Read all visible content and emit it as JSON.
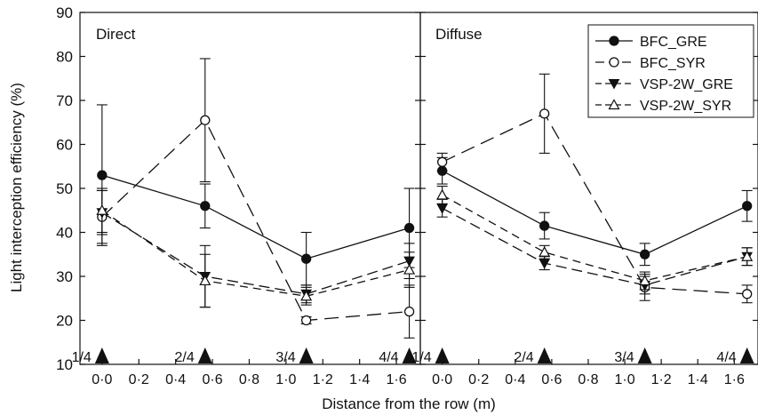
{
  "figure": {
    "ylabel": "Light interception efficiency (%)",
    "xlabel": "Distance from the row (m)"
  },
  "chart_data": [
    {
      "type": "line",
      "panel_label": "Direct",
      "x_ticks": [
        "0·0",
        "0·2",
        "0·4",
        "0·6",
        "0·8",
        "1·0",
        "1·2",
        "1·4",
        "1·6"
      ],
      "x_tick_values": [
        0,
        0.2,
        0.4,
        0.6,
        0.8,
        1.0,
        1.2,
        1.4,
        1.6
      ],
      "xlim": [
        -0.12,
        1.73
      ],
      "y_ticks": [
        10,
        20,
        30,
        40,
        50,
        60,
        70,
        80,
        90
      ],
      "ylim": [
        10,
        90
      ],
      "markers": [
        {
          "label": "1/4",
          "x": 0.0
        },
        {
          "label": "2/4",
          "x": 0.56
        },
        {
          "label": "3/4",
          "x": 1.11
        },
        {
          "label": "4/4",
          "x": 1.67
        }
      ],
      "series": [
        {
          "name": "BFC_GRE",
          "marker": "filled-circle",
          "dash": "solid",
          "x": [
            0.0,
            0.56,
            1.11,
            1.67
          ],
          "y": [
            53,
            46,
            34,
            41
          ],
          "err": [
            16,
            5,
            6,
            9
          ]
        },
        {
          "name": "BFC_SYR",
          "marker": "open-circle",
          "dash": "long",
          "x": [
            0.0,
            0.56,
            1.11,
            1.67
          ],
          "y": [
            43.5,
            65.5,
            20,
            22
          ],
          "err": [
            6,
            14,
            0.8,
            6
          ]
        },
        {
          "name": "VSP-2W_GRE",
          "marker": "filled-triangle-down",
          "dash": "medium",
          "x": [
            0.0,
            0.56,
            1.11,
            1.67
          ],
          "y": [
            44.5,
            30,
            26,
            33.5
          ],
          "err": [
            5,
            7,
            2,
            4
          ]
        },
        {
          "name": "VSP-2W_SYR",
          "marker": "open-triangle-up",
          "dash": "short",
          "x": [
            0.0,
            0.56,
            1.11,
            1.67
          ],
          "y": [
            45,
            29,
            25.5,
            31.5
          ],
          "err": [
            5,
            6,
            2,
            4
          ]
        }
      ]
    },
    {
      "type": "line",
      "panel_label": "Diffuse",
      "x_ticks": [
        "0·0",
        "0·2",
        "0·4",
        "0·6",
        "0·8",
        "1·0",
        "1·2",
        "1·4",
        "1·6"
      ],
      "x_tick_values": [
        0,
        0.2,
        0.4,
        0.6,
        0.8,
        1.0,
        1.2,
        1.4,
        1.6
      ],
      "xlim": [
        -0.12,
        1.73
      ],
      "y_ticks": [
        10,
        20,
        30,
        40,
        50,
        60,
        70,
        80,
        90
      ],
      "ylim": [
        10,
        90
      ],
      "markers": [
        {
          "label": "1/4",
          "x": 0.0
        },
        {
          "label": "2/4",
          "x": 0.56
        },
        {
          "label": "3/4",
          "x": 1.11
        },
        {
          "label": "4/4",
          "x": 1.67
        }
      ],
      "legend": {
        "placement": "top-right"
      },
      "series": [
        {
          "name": "BFC_GRE",
          "marker": "filled-circle",
          "dash": "solid",
          "x": [
            0.0,
            0.56,
            1.11,
            1.67
          ],
          "y": [
            54,
            41.5,
            35,
            46
          ],
          "err": [
            3,
            3,
            2.5,
            3.5
          ]
        },
        {
          "name": "BFC_SYR",
          "marker": "open-circle",
          "dash": "long",
          "x": [
            0.0,
            0.56,
            1.11,
            1.67
          ],
          "y": [
            56,
            67,
            27.5,
            26
          ],
          "err": [
            2,
            9,
            3,
            2
          ]
        },
        {
          "name": "VSP-2W_GRE",
          "marker": "filled-triangle-down",
          "dash": "medium",
          "x": [
            0.0,
            0.56,
            1.11,
            1.67
          ],
          "y": [
            45.5,
            33,
            28,
            34.5
          ],
          "err": [
            2,
            1.5,
            2,
            2
          ]
        },
        {
          "name": "VSP-2W_SYR",
          "marker": "open-triangle-up",
          "dash": "short",
          "x": [
            0.0,
            0.56,
            1.11,
            1.67
          ],
          "y": [
            48.5,
            35.5,
            29,
            34.5
          ],
          "err": [
            2,
            1.5,
            2,
            2
          ]
        }
      ]
    }
  ]
}
